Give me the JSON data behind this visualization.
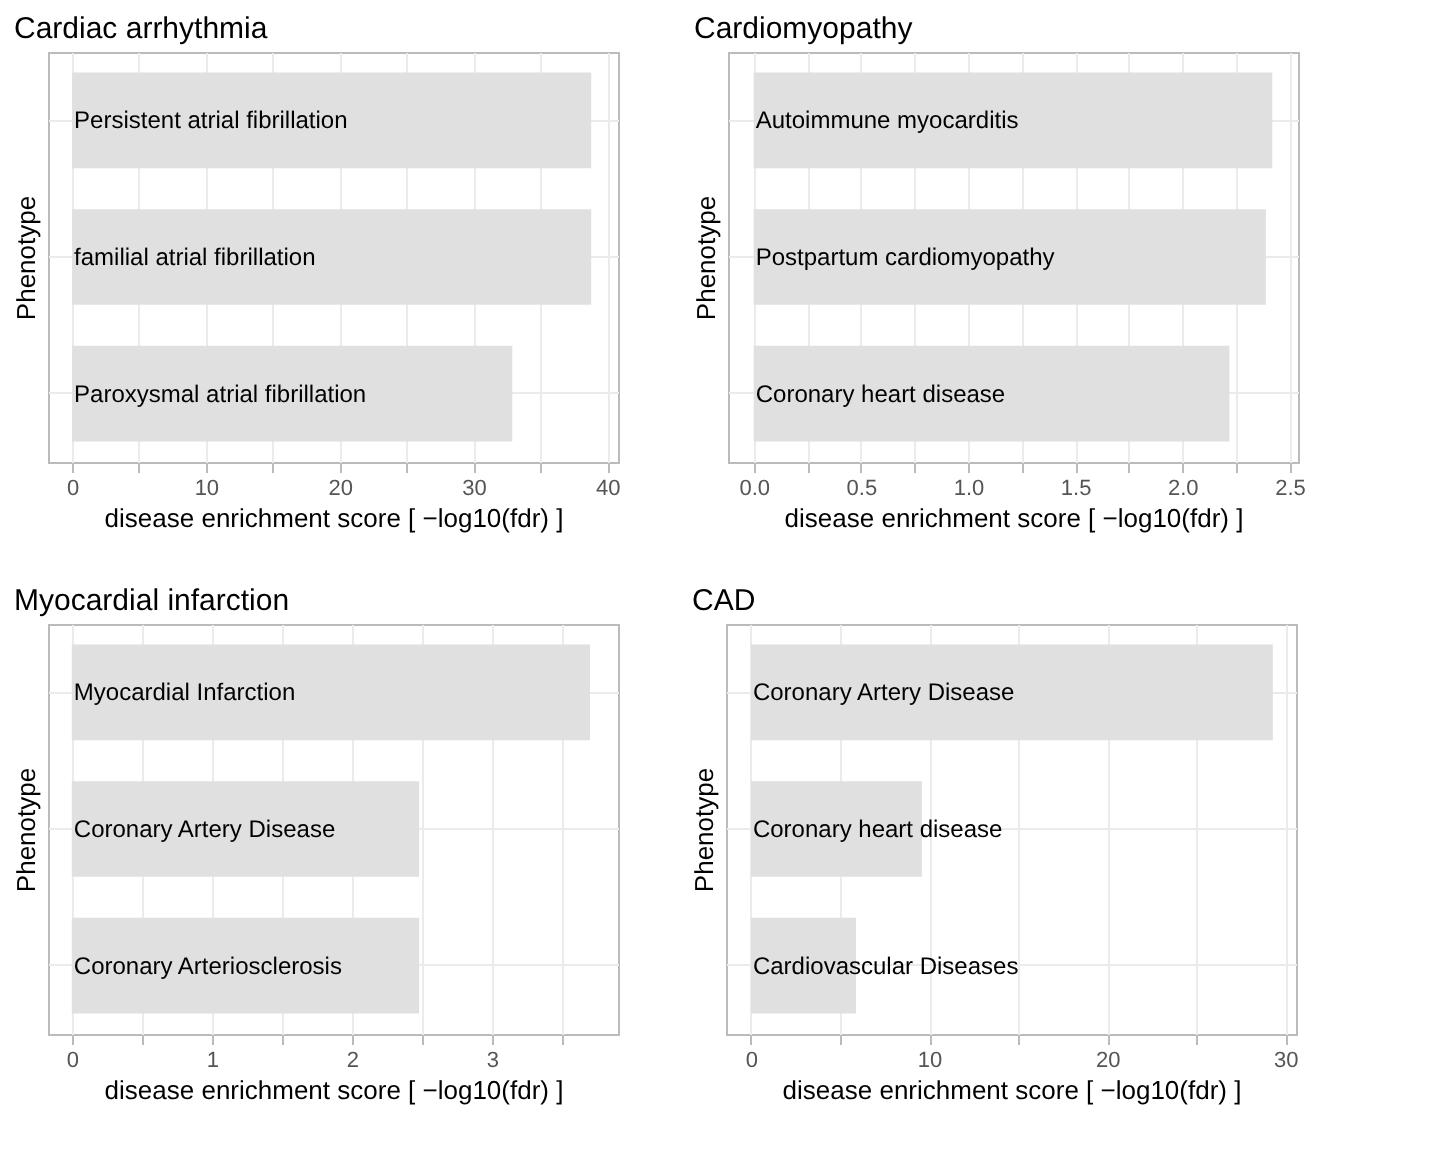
{
  "chart_data": [
    {
      "type": "bar",
      "orientation": "horizontal",
      "title": "Cardiac arrhythmia",
      "xlabel": "disease enrichment score [ −log10(fdr) ]",
      "ylabel": "Phenotype",
      "categories": [
        "Persistent atrial fibrillation",
        "familial atrial fibrillation",
        "Paroxysmal atrial fibrillation"
      ],
      "values": [
        38.8,
        38.8,
        32.9
      ],
      "color": "#e0e0e0",
      "xlim": [
        -1.8,
        40.8
      ],
      "xticks": [
        0,
        {
          "value": 5,
          "label": null
        },
        10,
        {
          "value": 15,
          "label": null
        },
        20,
        {
          "value": 25,
          "label": null
        },
        30,
        {
          "value": 35,
          "label": null
        },
        40
      ],
      "grid": true,
      "tick_labels": "x"
    },
    {
      "type": "bar",
      "orientation": "horizontal",
      "title": "Cardiomyopathy",
      "xlabel": "disease enrichment score [ −log10(fdr) ]",
      "ylabel": "Phenotype",
      "categories": [
        "Autoimmune myocarditis",
        "Postpartum cardiomyopathy",
        "Coronary heart disease"
      ],
      "values": [
        2.42,
        2.39,
        2.22
      ],
      "color": "#e0e0e0",
      "xlim": [
        -0.12,
        2.54
      ],
      "xticks": [
        {
          "value": 0,
          "label": "0.0"
        },
        {
          "value": 0.25,
          "label": null
        },
        0.5,
        {
          "value": 0.75,
          "label": null
        },
        {
          "value": 1,
          "label": "1.0"
        },
        {
          "value": 1.25,
          "label": null
        },
        1.5,
        {
          "value": 1.75,
          "label": null
        },
        {
          "value": 2,
          "label": "2.0"
        },
        {
          "value": 2.25,
          "label": null
        },
        2.5
      ],
      "grid": true,
      "tick_labels": "x"
    },
    {
      "type": "bar",
      "orientation": "horizontal",
      "title": "Myocardial infarction",
      "xlabel": "disease enrichment score [ −log10(fdr) ]",
      "ylabel": "Phenotype",
      "categories": [
        "Myocardial Infarction",
        "Coronary Artery Disease",
        "Coronary Arteriosclerosis"
      ],
      "values": [
        3.7,
        2.48,
        2.48
      ],
      "color": "#e0e0e0",
      "xlim": [
        -0.17,
        3.9
      ],
      "xticks": [
        0,
        {
          "value": 0.5,
          "label": null
        },
        1,
        {
          "value": 1.5,
          "label": null
        },
        2,
        {
          "value": 2.5,
          "label": null
        },
        3,
        {
          "value": 3.5,
          "label": null
        }
      ],
      "grid": true,
      "tick_labels": "x"
    },
    {
      "type": "bar",
      "orientation": "horizontal",
      "title": "CAD",
      "xlabel": "disease enrichment score [ −log10(fdr) ]",
      "ylabel": "Phenotype",
      "categories": [
        "Coronary Artery Disease",
        "Coronary heart disease",
        "Cardiovascular Diseases"
      ],
      "values": [
        29.3,
        9.6,
        5.9
      ],
      "color": "#e0e0e0",
      "xlim": [
        -1.4,
        30.6
      ],
      "xticks": [
        0,
        {
          "value": 5,
          "label": null
        },
        10,
        {
          "value": 15,
          "label": null
        },
        20,
        {
          "value": 25,
          "label": null
        },
        30
      ],
      "grid": true,
      "tick_labels": "x"
    }
  ]
}
